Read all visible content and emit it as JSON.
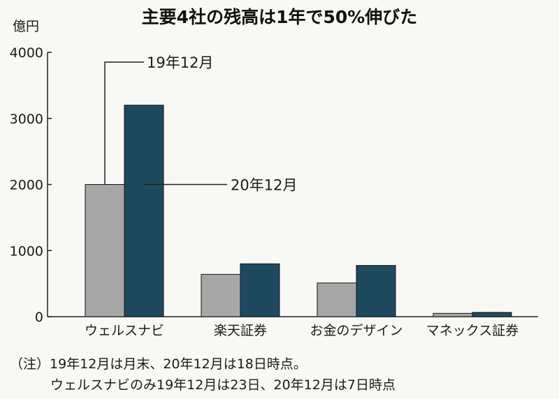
{
  "chart_data": {
    "type": "bar",
    "title": "主要4社の残高は1年で50%伸びた",
    "unit_label": "億円",
    "categories": [
      "ウェルスナビ",
      "楽天証券",
      "お金のデザイン",
      "マネックス証券"
    ],
    "series": [
      {
        "name": "19年12月",
        "values": [
          2000,
          640,
          510,
          50
        ],
        "color": "#a7a7a7"
      },
      {
        "name": "20年12月",
        "values": [
          3200,
          800,
          775,
          65
        ],
        "color": "#1e4a60"
      }
    ],
    "ylim": [
      0,
      4000
    ],
    "yticks": [
      "0",
      "1000",
      "2000",
      "3000",
      "4000"
    ],
    "grid": false,
    "legend": "inline-callouts"
  },
  "notes": [
    "（注）19年12月は月末、20年12月は18日時点。",
    "ウェルスナビのみ19年12月は23日、20年12月は7日時点"
  ]
}
